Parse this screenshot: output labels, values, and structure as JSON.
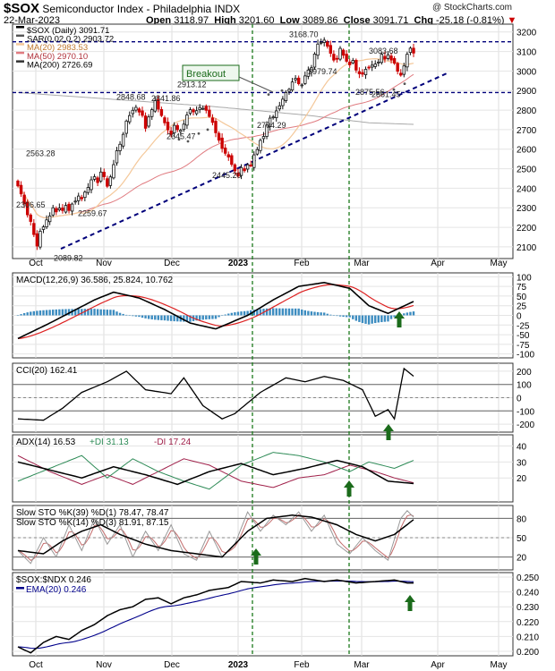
{
  "header": {
    "symbol": "$SOX",
    "name": "Semiconductor Index - Philadelphia",
    "exchange": "INDX",
    "credit": "@ StockCharts.com",
    "date": "22-Mar-2023",
    "open_label": "Open",
    "open": "3118.97",
    "high_label": "High",
    "high": "3201.60",
    "low_label": "Low",
    "low": "3089.86",
    "close_label": "Close",
    "close": "3091.71",
    "chg_label": "Chg",
    "chg": "-25.18 (-0.81%)"
  },
  "chart_data": [
    {
      "type": "candlestick",
      "panel": "price",
      "legend": [
        "$SOX (Daily) 3091.71",
        "SAR(0.02,0.2) 2903.72",
        "MA(20) 2983.53",
        "MA(50) 2970.10",
        "MA(200) 2726.69"
      ],
      "ylim": [
        2040,
        3240
      ],
      "yticks": [
        2100,
        2200,
        2300,
        2400,
        2500,
        2600,
        2700,
        2800,
        2900,
        3000,
        3100,
        3200
      ],
      "xticks": [
        "Oct",
        "Nov",
        "Dec",
        "2023",
        "Feb",
        "Mar",
        "Apr",
        "May"
      ],
      "closes": [
        2412,
        2371,
        2321,
        2264,
        2230,
        2163,
        2104,
        2180,
        2202,
        2238,
        2258,
        2300,
        2279,
        2298,
        2286,
        2312,
        2286,
        2319,
        2334,
        2360,
        2346,
        2380,
        2404,
        2443,
        2459,
        2429,
        2483,
        2459,
        2410,
        2458,
        2521,
        2592,
        2625,
        2676,
        2744,
        2772,
        2799,
        2814,
        2790,
        2773,
        2707,
        2765,
        2802,
        2848,
        2805,
        2772,
        2735,
        2699,
        2675,
        2722,
        2700,
        2697,
        2728,
        2775,
        2802,
        2791,
        2797,
        2813,
        2809,
        2799,
        2768,
        2737,
        2684,
        2646,
        2604,
        2579,
        2560,
        2522,
        2489,
        2462,
        2506,
        2490,
        2520,
        2516,
        2571,
        2598,
        2645,
        2665,
        2724,
        2759,
        2765,
        2796,
        2822,
        2856,
        2890,
        2906,
        2944,
        2962,
        2935,
        2929,
        2975,
        3005,
        3017,
        3087,
        3138,
        3147,
        3158,
        3127,
        3091,
        3056,
        3061,
        3116,
        3081,
        3050,
        3032,
        3054,
        3005,
        2986,
        2984,
        3009,
        3018,
        3030,
        3036,
        3046,
        3086,
        3061,
        3083,
        3056,
        3040,
        2999,
        2979,
        3026,
        3086,
        3117,
        3092
      ],
      "annotations": [
        "2089.82",
        "2306.65",
        "2563.28",
        "2259.67",
        "2848.68",
        "2841.86",
        "2913.12",
        "2645.47",
        "2445.20",
        "2704.29",
        "3168.70",
        "2979.74",
        "2875.56",
        "3083.68",
        "2861.45",
        "Breakout"
      ],
      "support_levels": [
        3150,
        2890
      ],
      "trendline": [
        [
          " Oct 14",
          2090
        ],
        [
          "Mar 22",
          2950
        ]
      ]
    },
    {
      "type": "line",
      "panel": "macd",
      "legend": "MACD(12,26,9) 36.586, 25.824, 10.762",
      "values": [
        "36.586",
        "25.824",
        "10.762"
      ],
      "ylim": [
        -110,
        110
      ],
      "yticks": [
        100,
        75,
        50,
        25,
        0,
        -25,
        -50,
        -75,
        -100
      ]
    },
    {
      "type": "line",
      "panel": "cci",
      "legend": "CCI(20) 162.41",
      "values": [
        "162.41"
      ],
      "ylim": [
        -260,
        260
      ],
      "yticks": [
        200,
        100,
        0,
        -100,
        -200
      ]
    },
    {
      "type": "line",
      "panel": "adx",
      "legend": [
        "ADX(14) 16.53",
        "+DI 31.13",
        "-DI 17.24"
      ],
      "ylim": [
        5,
        47
      ],
      "yticks": [
        40,
        30,
        20
      ]
    },
    {
      "type": "line",
      "panel": "stochastics",
      "legend": [
        "Slow STO %K(39) %D(1) 78.47, 78.47",
        "Slow STO %K(14) %D(3) 81.91, 87.15"
      ],
      "ylim": [
        0,
        100
      ],
      "yticks": [
        80,
        50,
        20
      ]
    },
    {
      "type": "line",
      "panel": "ratio",
      "legend": [
        "$SOX:$NDX 0.246",
        "EMA(20) 0.246"
      ],
      "ylim": [
        0.197,
        0.253
      ],
      "yticks": [
        "0.250",
        "0.240",
        "0.230",
        "0.220",
        "0.210",
        "0.200"
      ]
    }
  ],
  "colors": {
    "up": "#111111",
    "down": "#cc0000",
    "ma20": "#f4c89a",
    "ma50": "#e07b80",
    "ma200": "#a9a9a9",
    "guide": "#00007a",
    "green": "#1b6b1b",
    "macd_hist": "#3c8cc0",
    "di_plus": "#2e8b57",
    "di_minus": "#a0204a"
  }
}
